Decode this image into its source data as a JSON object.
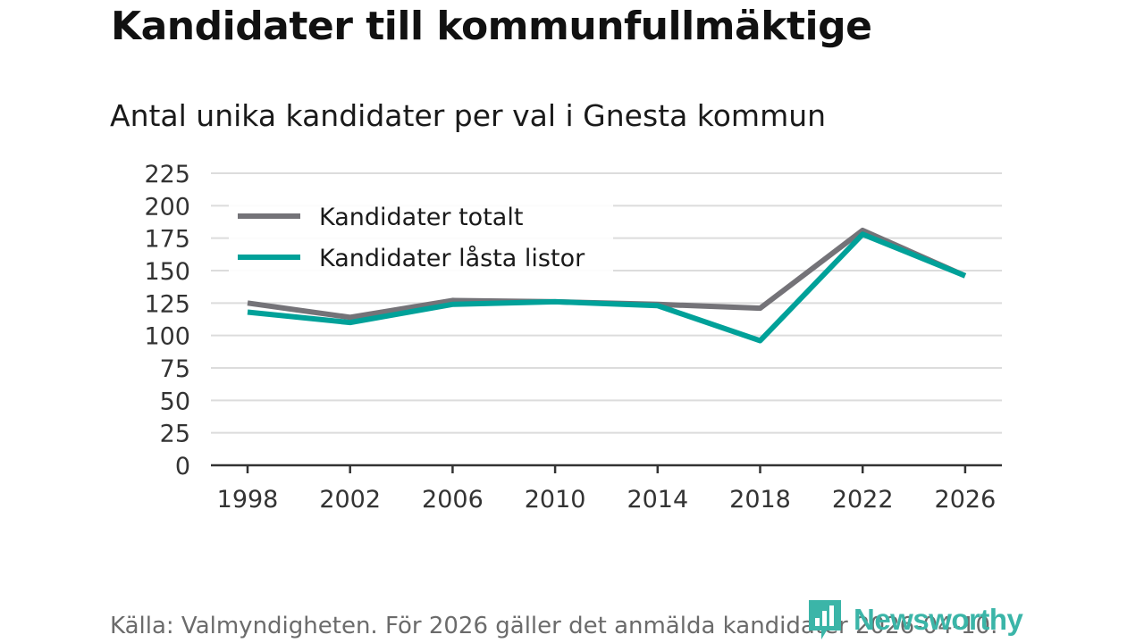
{
  "title": "Kandidater till kommunfullmäktige",
  "subtitle": "Antal unika kandidater per val i Gnesta kommun",
  "source": "Källa: Valmyndigheten. För 2026 gäller det anmälda kandidater 2026-04-10.",
  "brand": {
    "name": "Newsworthy",
    "logo_icon": "bar-chart-pin-icon",
    "color": "#3bb5a8"
  },
  "chart_data": {
    "type": "line",
    "title": "Kandidater till kommunfullmäktige",
    "subtitle": "Antal unika kandidater per val i Gnesta kommun",
    "xlabel": "",
    "ylabel": "",
    "categories": [
      "1998",
      "2002",
      "2006",
      "2010",
      "2014",
      "2018",
      "2022",
      "2026"
    ],
    "ylim": [
      0,
      225
    ],
    "yticks": [
      0,
      25,
      50,
      75,
      100,
      125,
      150,
      175,
      200,
      225
    ],
    "grid": true,
    "legend_position": "top-left",
    "series": [
      {
        "name": "Kandidater totalt",
        "color": "#747378",
        "values": [
          125,
          114,
          127,
          126,
          124,
          121,
          181,
          146
        ]
      },
      {
        "name": "Kandidater låsta listor",
        "color": "#00a199",
        "values": [
          118,
          110,
          124,
          126,
          123,
          96,
          178,
          146
        ]
      }
    ]
  }
}
